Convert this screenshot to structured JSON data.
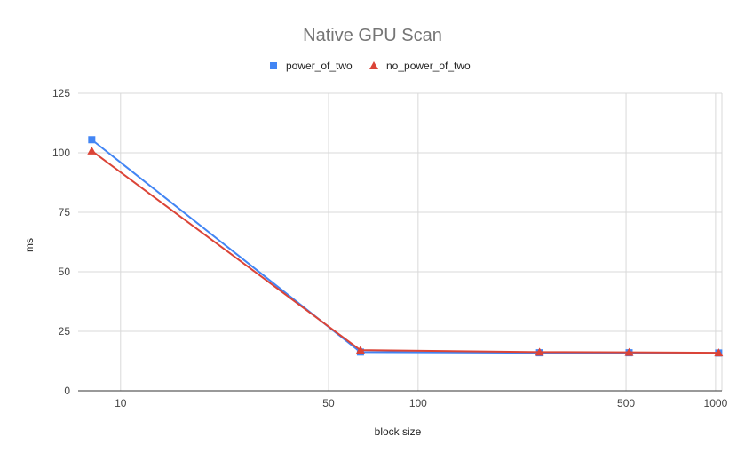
{
  "chart_data": {
    "type": "line",
    "title": "Native GPU Scan",
    "xlabel": "block size",
    "ylabel": "ms",
    "x_scale": "log",
    "xlim": [
      7.2,
      1050
    ],
    "ylim": [
      0,
      125
    ],
    "x_ticks": [
      10,
      50,
      100,
      500,
      1000
    ],
    "y_ticks": [
      0,
      25,
      50,
      75,
      100,
      125
    ],
    "grid": true,
    "legend_position": "top",
    "x": [
      8,
      64,
      256,
      512,
      1024
    ],
    "series": [
      {
        "name": "power_of_two",
        "color": "#4285f4",
        "marker": "square",
        "values": [
          105.5,
          16.3,
          16.0,
          16.0,
          15.9
        ]
      },
      {
        "name": "no_power_of_two",
        "color": "#db4437",
        "marker": "triangle",
        "values": [
          100.8,
          17.1,
          16.3,
          16.2,
          16.0
        ]
      }
    ]
  }
}
